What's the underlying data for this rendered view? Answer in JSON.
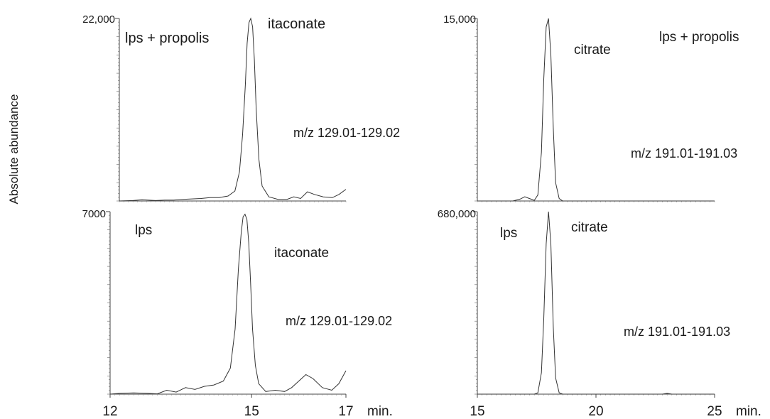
{
  "figure": {
    "ylabel": "Absolute abundance"
  },
  "chart_data": [
    {
      "type": "line",
      "panel": "top-left",
      "ymax_label": "22,000",
      "ylim": [
        0,
        22000
      ],
      "xlim": [
        12,
        17
      ],
      "annotations": [
        "lps + propolis",
        "itaconate",
        "m/z 129.01-129.02"
      ],
      "series": [
        {
          "name": "itaconate",
          "x": [
            12.0,
            12.3,
            12.5,
            12.8,
            13.0,
            13.2,
            13.4,
            13.6,
            13.8,
            14.0,
            14.2,
            14.4,
            14.55,
            14.65,
            14.72,
            14.78,
            14.82,
            14.86,
            14.9,
            14.94,
            14.98,
            15.02,
            15.08,
            15.15,
            15.3,
            15.5,
            15.7,
            15.85,
            16.0,
            16.15,
            16.3,
            16.5,
            16.7,
            16.85,
            17.0
          ],
          "y": [
            0,
            50,
            150,
            50,
            100,
            100,
            200,
            250,
            300,
            400,
            400,
            600,
            1200,
            3500,
            8000,
            14000,
            19000,
            21500,
            22000,
            21000,
            17000,
            11000,
            5000,
            1800,
            500,
            200,
            200,
            500,
            300,
            1100,
            800,
            500,
            400,
            800,
            1400
          ]
        }
      ]
    },
    {
      "type": "line",
      "panel": "top-right",
      "ymax_label": "15,000",
      "ylim": [
        0,
        15000
      ],
      "xlim": [
        15,
        25
      ],
      "annotations": [
        "lps + propolis",
        "citrate",
        "m/z 191.01-191.03"
      ],
      "series": [
        {
          "name": "citrate",
          "x": [
            15.0,
            16.0,
            16.5,
            16.8,
            17.0,
            17.2,
            17.4,
            17.55,
            17.7,
            17.8,
            17.9,
            18.0,
            18.1,
            18.2,
            18.3,
            18.45,
            18.6,
            19.0,
            20.0,
            22.0,
            25.0
          ],
          "y": [
            0,
            0,
            0,
            150,
            350,
            200,
            50,
            500,
            4000,
            10000,
            14300,
            15000,
            12000,
            6000,
            1500,
            200,
            0,
            0,
            0,
            0,
            0
          ]
        }
      ]
    },
    {
      "type": "line",
      "panel": "bottom-left",
      "ymax_label": "7000",
      "ylim": [
        0,
        7000
      ],
      "xlim": [
        12,
        17
      ],
      "xticks": [
        "12",
        "15",
        "17"
      ],
      "xunit": "min.",
      "annotations": [
        "lps",
        "itaconate",
        "m/z 129.01-129.02"
      ],
      "series": [
        {
          "name": "itaconate",
          "x": [
            12.0,
            12.2,
            12.5,
            12.8,
            13.0,
            13.2,
            13.4,
            13.6,
            13.8,
            14.0,
            14.2,
            14.4,
            14.55,
            14.65,
            14.72,
            14.78,
            14.82,
            14.86,
            14.9,
            14.94,
            14.98,
            15.02,
            15.08,
            15.15,
            15.3,
            15.5,
            15.7,
            15.85,
            16.0,
            16.15,
            16.3,
            16.5,
            16.7,
            16.85,
            17.0
          ],
          "y": [
            0,
            30,
            50,
            30,
            10,
            150,
            80,
            250,
            180,
            300,
            350,
            500,
            1000,
            2500,
            4800,
            6200,
            6800,
            6900,
            6700,
            5800,
            4200,
            2500,
            1100,
            400,
            100,
            150,
            100,
            250,
            500,
            750,
            600,
            250,
            150,
            400,
            900
          ]
        }
      ]
    },
    {
      "type": "line",
      "panel": "bottom-right",
      "ymax_label": "680,000",
      "ylim": [
        0,
        680000
      ],
      "xlim": [
        15,
        25
      ],
      "xticks": [
        "15",
        "20",
        "25"
      ],
      "xunit": "min.",
      "annotations": [
        "lps",
        "citrate",
        "m/z 191.01-191.03"
      ],
      "series": [
        {
          "name": "citrate",
          "x": [
            15.0,
            16.0,
            17.0,
            17.4,
            17.55,
            17.7,
            17.8,
            17.9,
            18.0,
            18.1,
            18.2,
            18.3,
            18.45,
            18.6,
            19.0,
            20.0,
            22.0,
            22.8,
            23.0,
            23.2,
            25.0
          ],
          "y": [
            0,
            0,
            0,
            0,
            5000,
            80000,
            280000,
            560000,
            680000,
            560000,
            250000,
            60000,
            5000,
            0,
            0,
            0,
            0,
            0,
            3000,
            0,
            0
          ]
        }
      ]
    }
  ]
}
